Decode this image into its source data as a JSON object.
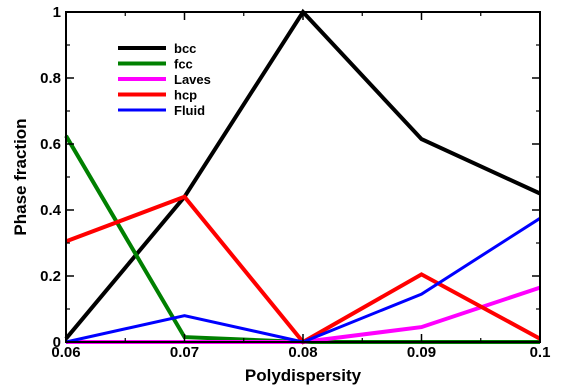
{
  "chart_data": {
    "type": "line",
    "title": "",
    "xlabel": "Polydispersity",
    "ylabel": "Phase fraction",
    "xlim": [
      0.06,
      0.1
    ],
    "ylim": [
      0,
      1
    ],
    "xticks": [
      0.06,
      0.07,
      0.08,
      0.09,
      0.1
    ],
    "xtick_labels": [
      "0.06",
      "0.07",
      "0.08",
      "0.09",
      "0.1"
    ],
    "yticks": [
      0,
      0.2,
      0.4,
      0.6,
      0.8,
      1
    ],
    "ytick_labels": [
      "0",
      "0.2",
      "0.4",
      "0.6",
      "0.8",
      "1"
    ],
    "grid": false,
    "legend_position": "top-left",
    "x": [
      0.06,
      0.07,
      0.08,
      0.09,
      0.1
    ],
    "series": [
      {
        "name": "bcc",
        "color": "#000000",
        "values": [
          0.01,
          0.44,
          1.0,
          0.615,
          0.45
        ]
      },
      {
        "name": "fcc",
        "color": "#008000",
        "values": [
          0.625,
          0.015,
          0.0,
          0.0,
          0.0
        ]
      },
      {
        "name": "Laves",
        "color": "#ff00ff",
        "values": [
          0.0,
          0.0,
          0.0,
          0.045,
          0.165
        ]
      },
      {
        "name": "hcp",
        "color": "#ff0000",
        "values": [
          0.305,
          0.44,
          0.0,
          0.205,
          0.01
        ]
      },
      {
        "name": "Fluid",
        "color": "#0000ff",
        "values": [
          0.0,
          0.08,
          0.0,
          0.145,
          0.375
        ]
      }
    ]
  }
}
